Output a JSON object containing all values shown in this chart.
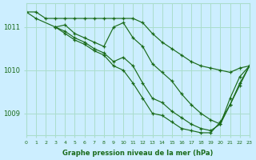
{
  "xlabel": "Graphe pression niveau de la mer (hPa)",
  "bg_color": "#cceeff",
  "grid_color": "#aaddcc",
  "line_color": "#1a6b1a",
  "xlim": [
    0,
    23
  ],
  "ylim": [
    1008.5,
    1011.55
  ],
  "yticks": [
    1009,
    1010,
    1011
  ],
  "xticks": [
    0,
    1,
    2,
    3,
    4,
    5,
    6,
    7,
    8,
    9,
    10,
    11,
    12,
    13,
    14,
    15,
    16,
    17,
    18,
    19,
    20,
    21,
    22,
    23
  ],
  "series": [
    {
      "x": [
        0,
        1,
        2,
        3,
        4,
        5,
        6,
        7,
        8,
        9,
        10,
        11,
        12,
        13,
        14,
        15,
        16,
        17,
        18,
        19,
        20,
        21,
        22,
        23
      ],
      "y": [
        1011.35,
        1011.35,
        1011.2,
        1011.2,
        1011.2,
        1011.2,
        1011.2,
        1011.2,
        1011.2,
        1011.2,
        1011.2,
        1011.2,
        1011.1,
        1010.85,
        1010.65,
        1010.5,
        1010.35,
        1010.2,
        1010.1,
        1010.05,
        1010.0,
        1009.95,
        1010.05,
        1010.1
      ]
    },
    {
      "x": [
        0,
        1,
        3,
        4,
        5,
        6,
        7,
        8,
        9,
        10,
        11,
        12,
        13,
        14,
        15,
        16,
        17,
        18,
        19,
        20,
        21,
        22,
        23
      ],
      "y": [
        1011.35,
        1011.2,
        1011.0,
        1011.05,
        1010.85,
        1010.75,
        1010.65,
        1010.55,
        1011.0,
        1011.1,
        1010.75,
        1010.55,
        1010.15,
        1009.95,
        1009.75,
        1009.45,
        1009.2,
        1009.0,
        1008.85,
        1008.75,
        1009.35,
        1009.85,
        1010.1
      ]
    },
    {
      "x": [
        3,
        4,
        5,
        6,
        7,
        8,
        9,
        10,
        11,
        12,
        13,
        14,
        15,
        16,
        17,
        18,
        19,
        20,
        21,
        22,
        23
      ],
      "y": [
        1011.0,
        1010.9,
        1010.75,
        1010.65,
        1010.5,
        1010.4,
        1010.2,
        1010.3,
        1010.1,
        1009.7,
        1009.35,
        1009.25,
        1009.05,
        1008.9,
        1008.75,
        1008.65,
        1008.6,
        1008.75,
        1009.2,
        1009.7,
        1010.1
      ]
    },
    {
      "x": [
        3,
        4,
        5,
        6,
        7,
        8,
        9,
        10,
        11,
        12,
        13,
        14,
        15,
        16,
        17,
        18,
        19,
        20,
        21,
        22,
        23
      ],
      "y": [
        1011.0,
        1010.85,
        1010.7,
        1010.6,
        1010.45,
        1010.35,
        1010.1,
        1010.0,
        1009.7,
        1009.35,
        1009.0,
        1008.95,
        1008.8,
        1008.65,
        1008.6,
        1008.55,
        1008.55,
        1008.8,
        1009.2,
        1009.65,
        1010.1
      ]
    }
  ]
}
